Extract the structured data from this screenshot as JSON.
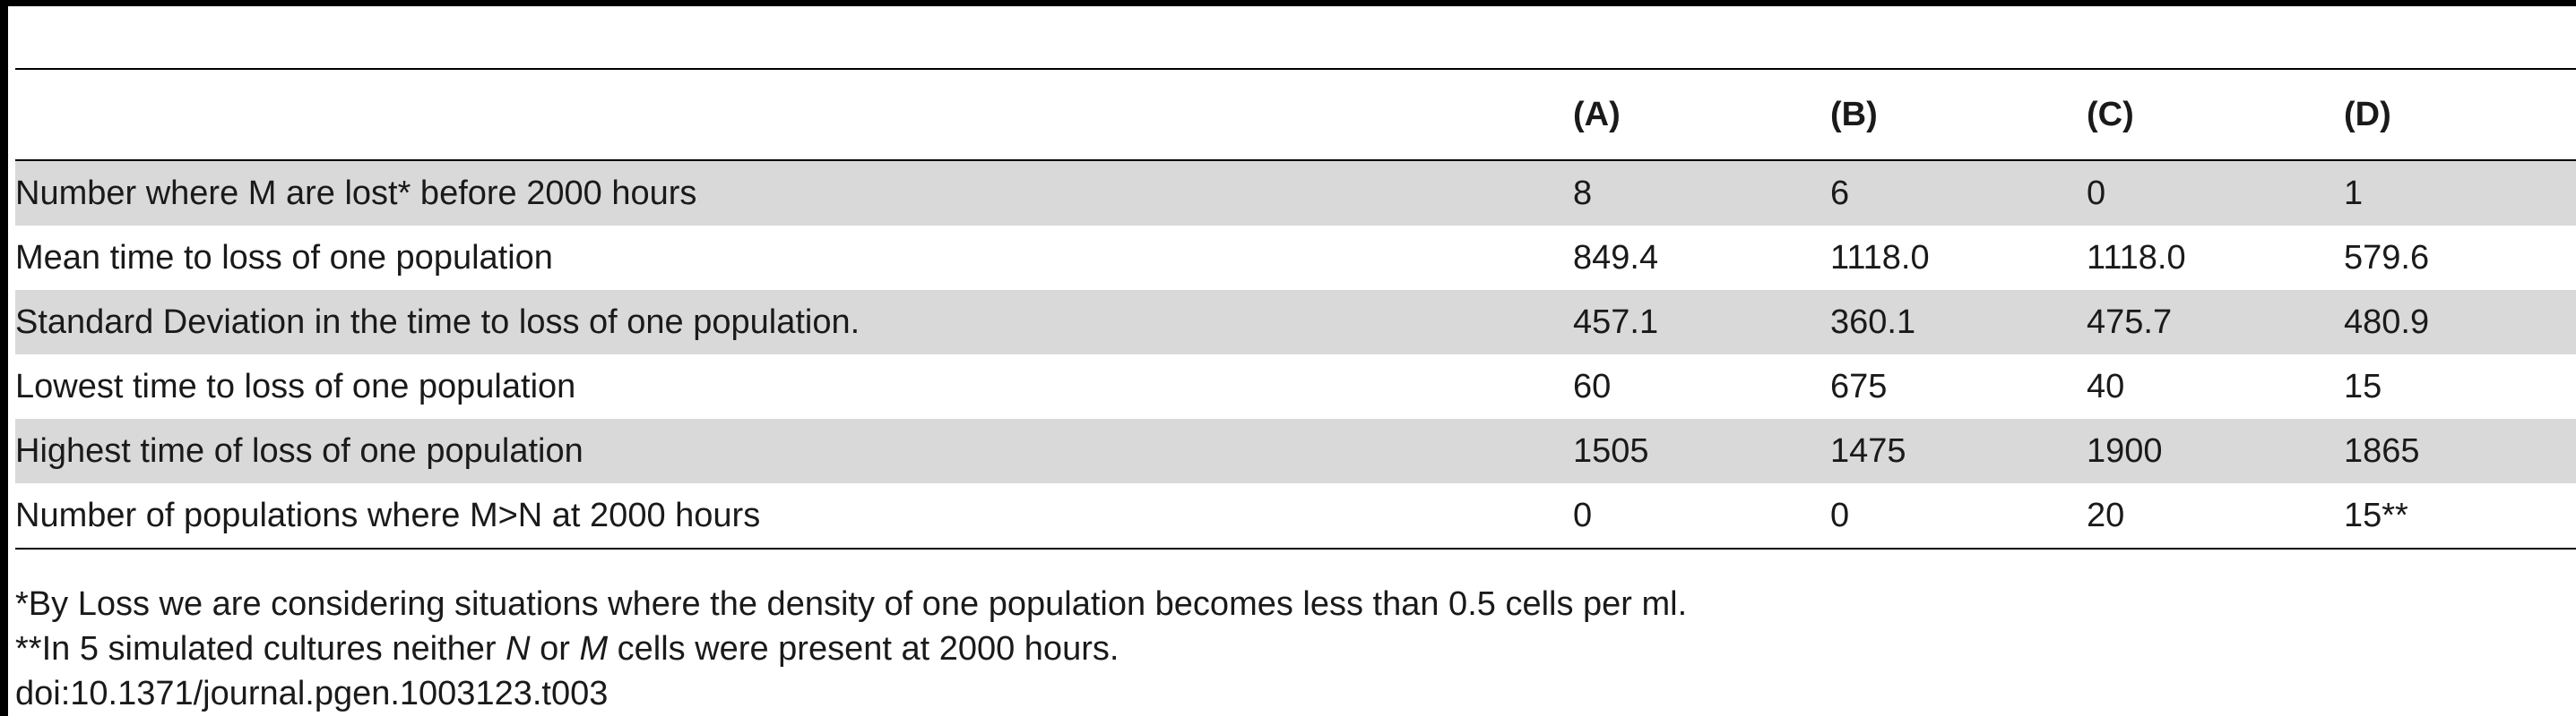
{
  "table": {
    "headers": [
      "",
      "(A)",
      "(B)",
      "(C)",
      "(D)"
    ],
    "rows": [
      {
        "label": "Number where M are lost* before 2000 hours",
        "values": [
          "8",
          "6",
          "0",
          "1"
        ]
      },
      {
        "label": "Mean time to loss of one population",
        "values": [
          "849.4",
          "1118.0",
          "1118.0",
          "579.6"
        ]
      },
      {
        "label": "Standard Deviation in the time to loss of one population.",
        "values": [
          "457.1",
          "360.1",
          "475.7",
          "480.9"
        ]
      },
      {
        "label": "Lowest time to loss of one population",
        "values": [
          "60",
          "675",
          "40",
          "15"
        ]
      },
      {
        "label": "Highest time of loss of one population",
        "values": [
          "1505",
          "1475",
          "1900",
          "1865"
        ]
      },
      {
        "label": "Number of populations where M>N at 2000 hours",
        "values": [
          "0",
          "0",
          "20",
          "15**"
        ]
      }
    ]
  },
  "footnotes": {
    "note1": "*By Loss we are considering situations where the density of one population becomes less than 0.5 cells per ml.",
    "note2_prefix": "**In 5 simulated cultures neither ",
    "note2_n": "N",
    "note2_mid": " or ",
    "note2_m": "M",
    "note2_suffix": " cells were present at 2000 hours.",
    "doi": "doi:10.1371/journal.pgen.1003123.t003"
  }
}
